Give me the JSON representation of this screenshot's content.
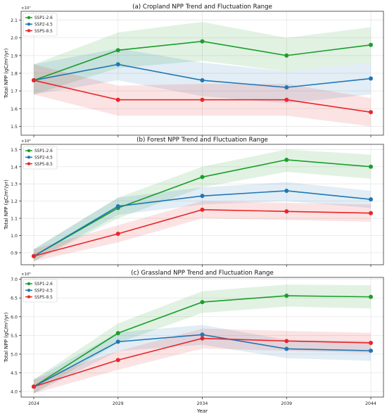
{
  "chart_data": [
    {
      "type": "line",
      "title": "(a) Cropland NPP Trend and Fluctuation Range",
      "ylabel": "Total NPP (gC/m²/yr)",
      "xlabel": "",
      "multiplier": "×10⁷",
      "ylim": [
        1.45,
        2.15
      ],
      "yticks": [
        1.5,
        1.6,
        1.7,
        1.8,
        1.9,
        2.0,
        2.1
      ],
      "ytick_labels": [
        "1.5",
        "1.6",
        "1.7",
        "1.8",
        "1.9",
        "2.0",
        "2.1"
      ],
      "x": [
        2024,
        2029,
        2034,
        2039,
        2044
      ],
      "grid": true,
      "legend": "top-left",
      "series": [
        {
          "name": "SSP1-2.6",
          "color": "#1a9e2a",
          "values": [
            1.76,
            1.93,
            1.98,
            1.9,
            1.96
          ],
          "lower": [
            1.68,
            1.83,
            1.87,
            1.81,
            1.86
          ],
          "upper": [
            1.85,
            2.03,
            2.09,
            2.0,
            2.06
          ]
        },
        {
          "name": "SSP2-4.5",
          "color": "#1f77b4",
          "values": [
            1.76,
            1.85,
            1.76,
            1.72,
            1.77
          ],
          "lower": [
            1.68,
            1.76,
            1.67,
            1.63,
            1.68
          ],
          "upper": [
            1.85,
            1.94,
            1.86,
            1.81,
            1.86
          ]
        },
        {
          "name": "SSP5-8.5",
          "color": "#e8262a",
          "values": [
            1.76,
            1.65,
            1.65,
            1.65,
            1.58
          ],
          "lower": [
            1.68,
            1.56,
            1.56,
            1.56,
            1.5
          ],
          "upper": [
            1.85,
            1.73,
            1.74,
            1.74,
            1.66
          ]
        }
      ]
    },
    {
      "type": "line",
      "title": "(b) Forest NPP Trend and Fluctuation Range",
      "ylabel": "Total NPP (gC/m²/yr)",
      "xlabel": "",
      "multiplier": "×10⁸",
      "ylim": [
        0.83,
        1.53
      ],
      "yticks": [
        0.9,
        1.0,
        1.1,
        1.2,
        1.3,
        1.4,
        1.5
      ],
      "ytick_labels": [
        "0.9",
        "1.0",
        "1.1",
        "1.2",
        "1.3",
        "1.4",
        "1.5"
      ],
      "x": [
        2024,
        2029,
        2034,
        2039,
        2044
      ],
      "grid": true,
      "legend": "top-left",
      "series": [
        {
          "name": "SSP1-2.6",
          "color": "#1a9e2a",
          "values": [
            0.88,
            1.16,
            1.34,
            1.44,
            1.4
          ],
          "lower": [
            0.85,
            1.1,
            1.28,
            1.37,
            1.33
          ],
          "upper": [
            0.92,
            1.22,
            1.4,
            1.5,
            1.47
          ]
        },
        {
          "name": "SSP2-4.5",
          "color": "#1f77b4",
          "values": [
            0.88,
            1.17,
            1.23,
            1.26,
            1.21
          ],
          "lower": [
            0.85,
            1.12,
            1.18,
            1.2,
            1.16
          ],
          "upper": [
            0.92,
            1.22,
            1.28,
            1.31,
            1.26
          ]
        },
        {
          "name": "SSP5-8.5",
          "color": "#e8262a",
          "values": [
            0.88,
            1.01,
            1.15,
            1.14,
            1.13
          ],
          "lower": [
            0.85,
            0.96,
            1.1,
            1.09,
            1.08
          ],
          "upper": [
            0.92,
            1.06,
            1.2,
            1.19,
            1.18
          ]
        }
      ]
    },
    {
      "type": "line",
      "title": "(c) Grassland NPP Trend and Fluctuation Range",
      "ylabel": "Total NPP (gC/m²/yr)",
      "xlabel": "Year",
      "multiplier": "×10⁸",
      "ylim": [
        3.85,
        7.05
      ],
      "yticks": [
        4.0,
        4.5,
        5.0,
        5.5,
        6.0,
        6.5,
        7.0
      ],
      "ytick_labels": [
        "4.0",
        "4.5",
        "5.0",
        "5.5",
        "6.0",
        "6.5",
        "7.0"
      ],
      "x": [
        2024,
        2029,
        2034,
        2039,
        2044
      ],
      "xtick_labels": [
        "2024",
        "2029",
        "2034",
        "2039",
        "2044"
      ],
      "grid": true,
      "legend": "top-left",
      "series": [
        {
          "name": "SSP1-2.6",
          "color": "#1a9e2a",
          "values": [
            4.13,
            5.56,
            6.39,
            6.56,
            6.53
          ],
          "lower": [
            3.95,
            5.3,
            6.1,
            6.27,
            6.22
          ],
          "upper": [
            4.32,
            5.82,
            6.68,
            6.86,
            6.84
          ]
        },
        {
          "name": "SSP2-4.5",
          "color": "#1f77b4",
          "values": [
            4.13,
            5.33,
            5.52,
            5.14,
            5.09
          ],
          "lower": [
            3.95,
            5.08,
            5.25,
            4.89,
            4.82
          ],
          "upper": [
            4.32,
            5.58,
            5.78,
            5.38,
            5.35
          ]
        },
        {
          "name": "SSP5-8.5",
          "color": "#e8262a",
          "values": [
            4.13,
            4.84,
            5.42,
            5.35,
            5.3
          ],
          "lower": [
            3.95,
            4.58,
            5.15,
            5.09,
            5.03
          ],
          "upper": [
            4.32,
            5.08,
            5.68,
            5.62,
            5.57
          ]
        }
      ]
    }
  ]
}
